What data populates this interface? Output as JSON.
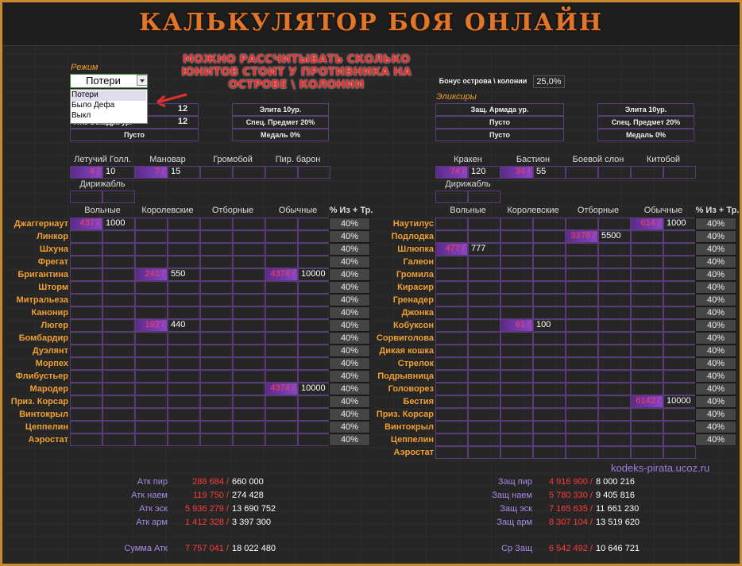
{
  "header": {
    "title": "КАЛЬКУЛЯТОР БОЯ ОНЛАЙН"
  },
  "annotation": [
    "МОЖНО РАССЧИТЫВАТЬ СКОЛЬКО",
    "ЮНИТОВ СТОИТ У ПРОТИВНИКА НА",
    "ОСТРОВЕ \\ КОЛОНИИ"
  ],
  "mode": {
    "label": "Режим",
    "value": "Потери",
    "options": [
      "Потери",
      "Было Дефа",
      "Выкл"
    ]
  },
  "left": {
    "params": {
      "col1": [
        {
          "value": "12"
        },
        {
          "label": "Атк. Эскадра ур.",
          "value": "12"
        },
        {
          "label": "Пусто"
        }
      ],
      "col2": [
        "Элита 10ур.",
        "Спец. Предмет 20%",
        "Медаль 0%"
      ]
    },
    "heroes": {
      "names": [
        "Летучий Голл.",
        "Мановар",
        "Громобой",
        "Пир. барон"
      ],
      "cells": [
        {
          "loss": "4 /",
          "total": "10"
        },
        {
          "loss": "7 /",
          "total": "15"
        },
        null,
        null
      ],
      "extra": "Дирижабль"
    },
    "table": {
      "columns": [
        "Вольные",
        "Королевские",
        "Отборные",
        "Обычные",
        "% Из + Тр."
      ],
      "rows": [
        {
          "name": "Джаггернаут",
          "cells": [
            {
              "loss": "437 /",
              "total": "1000"
            },
            null,
            null,
            null
          ],
          "pct": "40%"
        },
        {
          "name": "Линкор",
          "cells": [
            null,
            null,
            null,
            null
          ],
          "pct": "40%"
        },
        {
          "name": "Шхуна",
          "cells": [
            null,
            null,
            null,
            null
          ],
          "pct": "40%"
        },
        {
          "name": "Фрегат",
          "cells": [
            null,
            null,
            null,
            null
          ],
          "pct": "40%"
        },
        {
          "name": "Бригантина",
          "cells": [
            null,
            {
              "loss": "241 /",
              "total": "550"
            },
            null,
            {
              "loss": "4374 /",
              "total": "10000"
            }
          ],
          "pct": "40%"
        },
        {
          "name": "Шторм",
          "cells": [
            null,
            null,
            null,
            null
          ],
          "pct": "40%"
        },
        {
          "name": "Митральеза",
          "cells": [
            null,
            null,
            null,
            null
          ],
          "pct": "40%"
        },
        {
          "name": "Канонир",
          "cells": [
            null,
            null,
            null,
            null
          ],
          "pct": "40%"
        },
        {
          "name": "Люгер",
          "cells": [
            null,
            {
              "loss": "192 /",
              "total": "440"
            },
            null,
            null
          ],
          "pct": "40%"
        },
        {
          "name": "Бомбардир",
          "cells": [
            null,
            null,
            null,
            null
          ],
          "pct": "40%"
        },
        {
          "name": "Дуэлянт",
          "cells": [
            null,
            null,
            null,
            null
          ],
          "pct": "40%"
        },
        {
          "name": "Морпех",
          "cells": [
            null,
            null,
            null,
            null
          ],
          "pct": "40%"
        },
        {
          "name": "Флибустьер",
          "cells": [
            null,
            null,
            null,
            null
          ],
          "pct": "40%"
        },
        {
          "name": "Мародер",
          "cells": [
            null,
            null,
            null,
            {
              "loss": "4374 /",
              "total": "10000"
            }
          ],
          "pct": "40%"
        },
        {
          "name": "Приз. Корсар",
          "cells": [
            null,
            null,
            null,
            null
          ],
          "pct": "40%"
        },
        {
          "name": "Винтокрыл",
          "cells": [
            null,
            null,
            null,
            null
          ],
          "pct": "40%"
        },
        {
          "name": "Цеппелин",
          "cells": [
            null,
            null,
            null,
            null
          ],
          "pct": "40%"
        },
        {
          "name": "Аэростат",
          "cells": [
            null,
            null,
            null,
            null
          ],
          "pct": "40%"
        }
      ]
    },
    "summary": [
      {
        "label": "Атк пир",
        "loss": "288 684 /",
        "total": "660 000"
      },
      {
        "label": "Атк наем",
        "loss": "119 750 /",
        "total": "274 428"
      },
      {
        "label": "Атк эск",
        "loss": "5 936 279 /",
        "total": "13 690 752"
      },
      {
        "label": "Атк арм",
        "loss": "1 412 328 /",
        "total": "3 397 300"
      },
      {
        "label": "Сумма Атк",
        "loss": "7 757 041 /",
        "total": "18 022 480"
      }
    ]
  },
  "right": {
    "bonus": {
      "label": "Бонус острова \\ колонии",
      "value": "25,0%"
    },
    "elixirs": "Эликсиры",
    "params": {
      "col1": [
        {
          "label": "Защ. Армада ур."
        },
        {
          "label": "Пусто"
        },
        {
          "label": "Пусто"
        }
      ],
      "col2": [
        "Элита 10ур.",
        "Спец. Предмет 20%",
        "Медаль 0%"
      ]
    },
    "heroes": {
      "names": [
        "Кракен",
        "Бастион",
        "Боевой слон",
        "Китобой"
      ],
      "cells": [
        {
          "loss": "74 /",
          "total": "120"
        },
        {
          "loss": "34 /",
          "total": "55"
        },
        null,
        null
      ],
      "extra": "Дирижабль"
    },
    "table": {
      "columns": [
        "Вольные",
        "Королевские",
        "Отборные",
        "Обычные",
        "% Из + Тр."
      ],
      "rows": [
        {
          "name": "Наутилус",
          "cells": [
            null,
            null,
            null,
            {
              "loss": "614 /",
              "total": "1000"
            }
          ],
          "pct": "40%"
        },
        {
          "name": "Подлодка",
          "cells": [
            null,
            null,
            {
              "loss": "3378 /",
              "total": "5500"
            },
            null
          ],
          "pct": "40%"
        },
        {
          "name": "Шлюпка",
          "cells": [
            {
              "loss": "477 /",
              "total": "777"
            },
            null,
            null,
            null
          ],
          "pct": "40%"
        },
        {
          "name": "Галеон",
          "cells": [
            null,
            null,
            null,
            null
          ],
          "pct": "40%"
        },
        {
          "name": "Громила",
          "cells": [
            null,
            null,
            null,
            null
          ],
          "pct": "40%"
        },
        {
          "name": "Кирасир",
          "cells": [
            null,
            null,
            null,
            null
          ],
          "pct": "40%"
        },
        {
          "name": "Гренадер",
          "cells": [
            null,
            null,
            null,
            null
          ],
          "pct": "40%"
        },
        {
          "name": "Джонка",
          "cells": [
            null,
            null,
            null,
            null
          ],
          "pct": "40%"
        },
        {
          "name": "Кобуксон",
          "cells": [
            null,
            {
              "loss": "61 /",
              "total": "100"
            },
            null,
            null
          ],
          "pct": "40%"
        },
        {
          "name": "Сорвиголова",
          "cells": [
            null,
            null,
            null,
            null
          ],
          "pct": "40%"
        },
        {
          "name": "Дикая кошка",
          "cells": [
            null,
            null,
            null,
            null
          ],
          "pct": "40%"
        },
        {
          "name": "Стрелок",
          "cells": [
            null,
            null,
            null,
            null
          ],
          "pct": "40%"
        },
        {
          "name": "Подрывница",
          "cells": [
            null,
            null,
            null,
            null
          ],
          "pct": "40%"
        },
        {
          "name": "Головорез",
          "cells": [
            null,
            null,
            null,
            null
          ],
          "pct": "40%"
        },
        {
          "name": "Бестия",
          "cells": [
            null,
            null,
            null,
            {
              "loss": "6142 /",
              "total": "10000"
            }
          ],
          "pct": "40%"
        },
        {
          "name": "Приз. Корсар",
          "cells": [
            null,
            null,
            null,
            null
          ],
          "pct": "40%"
        },
        {
          "name": "Винтокрыл",
          "cells": [
            null,
            null,
            null,
            null
          ],
          "pct": "40%"
        },
        {
          "name": "Цеппелин",
          "cells": [
            null,
            null,
            null,
            null
          ],
          "pct": "40%"
        },
        {
          "name": "Аэростат",
          "cells": [
            null,
            null,
            null,
            null
          ]
        }
      ]
    },
    "summary": [
      {
        "label": "Защ пир",
        "loss": "4 916 900 /",
        "total": "8 000 216"
      },
      {
        "label": "Защ наем",
        "loss": "5 780 330 /",
        "total": "9 405 816"
      },
      {
        "label": "Защ эск",
        "loss": "7 165 635 /",
        "total": "11 661 230"
      },
      {
        "label": "Защ арм",
        "loss": "8 307 104 /",
        "total": "13 519 620"
      },
      {
        "label": "Ср Защ",
        "loss": "6 542 492 /",
        "total": "10 646 721"
      }
    ]
  },
  "watermark": "kodeks-pirata.ucoz.ru"
}
